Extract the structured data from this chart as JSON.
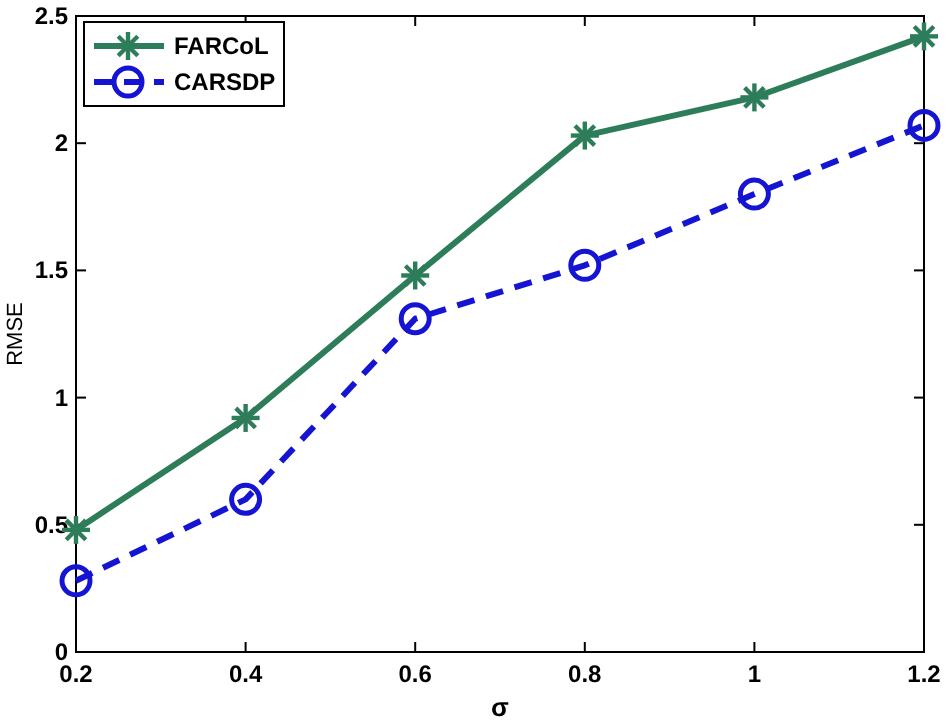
{
  "chart_data": {
    "type": "line",
    "xlabel": "σ",
    "ylabel": "RMSE",
    "x": [
      0.2,
      0.4,
      0.6,
      0.8,
      1,
      1.2
    ],
    "series": [
      {
        "name": "FARCoL",
        "color": "#2e7d5a",
        "values": [
          0.48,
          0.92,
          1.48,
          2.03,
          2.18,
          2.42
        ],
        "marker": "cross",
        "line_style": "solid"
      },
      {
        "name": "CARSDP",
        "color": "#1414d2",
        "values": [
          0.28,
          0.6,
          1.31,
          1.52,
          1.8,
          2.07
        ],
        "marker": "circle",
        "line_style": "dashed"
      }
    ],
    "xlim": [
      0.2,
      1.2
    ],
    "ylim": [
      0,
      2.5
    ],
    "xticks": [
      0.2,
      0.4,
      0.6,
      0.8,
      1,
      1.2
    ],
    "yticks": [
      0,
      0.5,
      1,
      1.5,
      2,
      2.5
    ],
    "legend": "top left",
    "grid": false
  }
}
